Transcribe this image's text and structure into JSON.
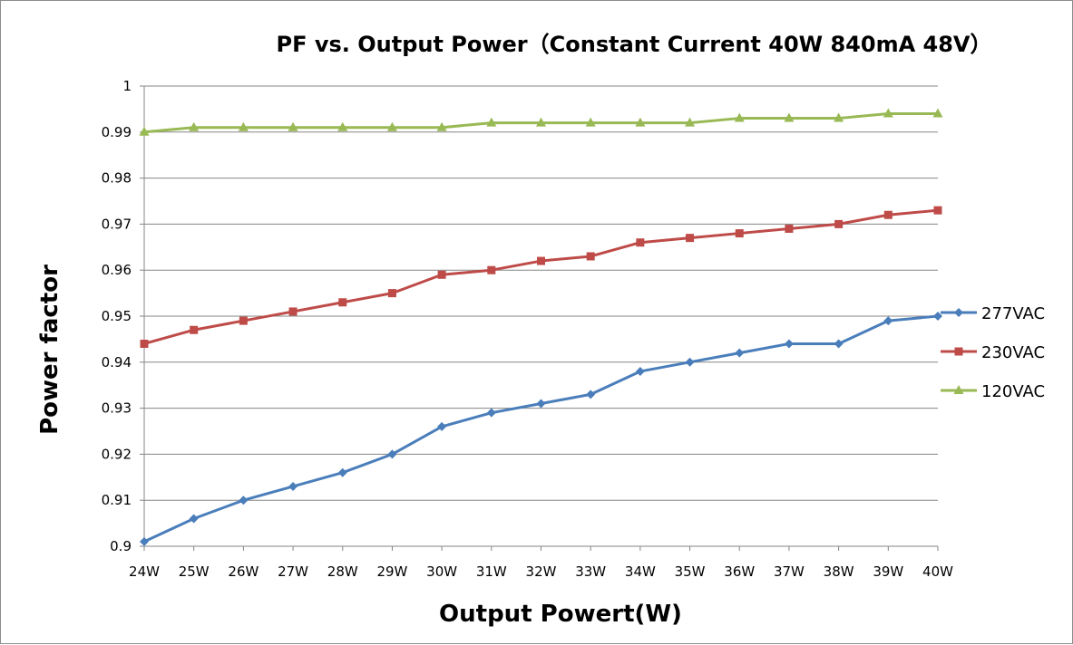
{
  "chart_data": {
    "type": "line",
    "title": "PF vs. Output Power（Constant Current 40W 840mA 48V）",
    "xlabel": "Output Powert(W)",
    "ylabel": "Power factor",
    "categories": [
      "24W",
      "25W",
      "26W",
      "27W",
      "28W",
      "29W",
      "30W",
      "31W",
      "32W",
      "33W",
      "34W",
      "35W",
      "36W",
      "37W",
      "38W",
      "39W",
      "40W"
    ],
    "ylim": [
      0.9,
      1
    ],
    "yticks": [
      "0.9",
      "0.91",
      "0.92",
      "0.93",
      "0.94",
      "0.95",
      "0.96",
      "0.97",
      "0.98",
      "0.99",
      "1"
    ],
    "grid": true,
    "legend_position": "right",
    "series": [
      {
        "name": "277VAC",
        "color": "#4a7ebb",
        "marker": "diamond",
        "values": [
          0.901,
          0.906,
          0.91,
          0.913,
          0.916,
          0.92,
          0.926,
          0.929,
          0.931,
          0.933,
          0.938,
          0.94,
          0.942,
          0.944,
          0.944,
          0.949,
          0.95
        ]
      },
      {
        "name": "230VAC",
        "color": "#be4b48",
        "marker": "square",
        "values": [
          0.944,
          0.947,
          0.949,
          0.951,
          0.953,
          0.955,
          0.959,
          0.96,
          0.962,
          0.963,
          0.966,
          0.967,
          0.968,
          0.969,
          0.97,
          0.972,
          0.973
        ]
      },
      {
        "name": "120VAC",
        "color": "#98b954",
        "marker": "triangle",
        "values": [
          0.99,
          0.991,
          0.991,
          0.991,
          0.991,
          0.991,
          0.991,
          0.992,
          0.992,
          0.992,
          0.992,
          0.992,
          0.993,
          0.993,
          0.993,
          0.994,
          0.994
        ]
      }
    ]
  }
}
